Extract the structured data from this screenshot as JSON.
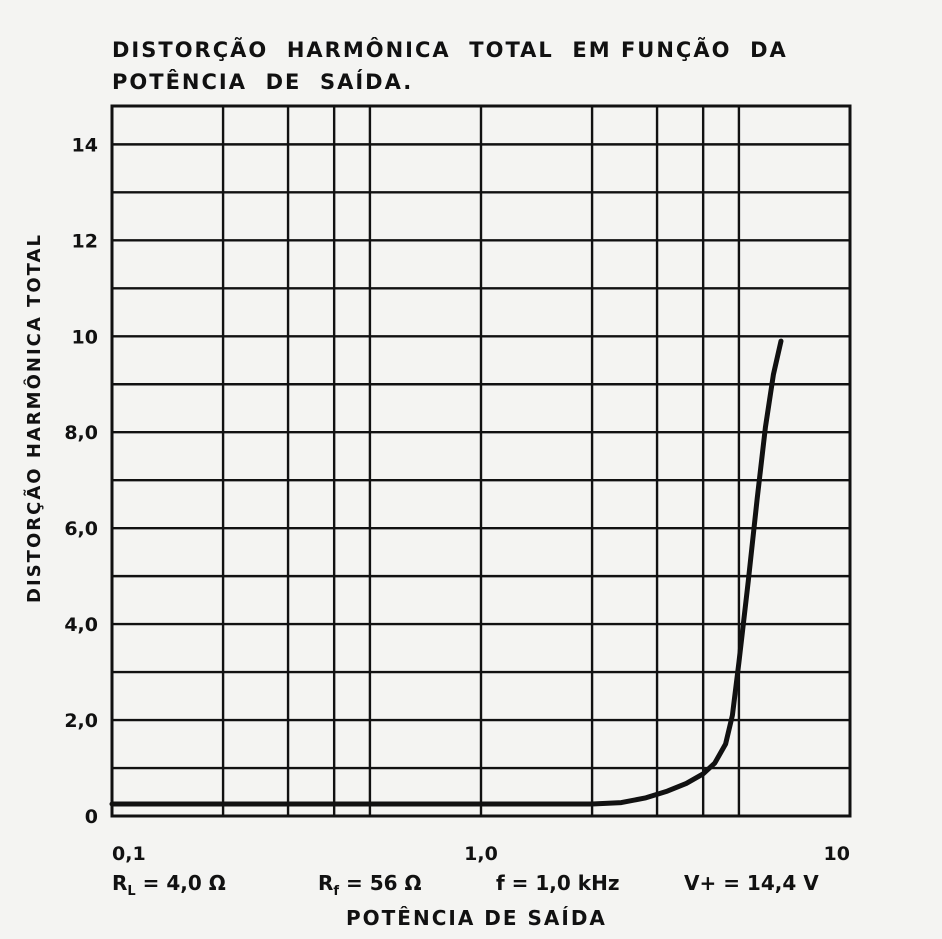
{
  "chart_data": {
    "type": "line",
    "title_lines": [
      "DISTORÇÃO  HARMÔNICA  TOTAL  EM FUNÇÃO  DA",
      "POTÊNCIA  DE  SAÍDA."
    ],
    "xlabel": "POTÊNCIA  DE  SAÍDA",
    "ylabel": "DISTORÇÃO  HARMÔNICA  TOTAL",
    "xscale": "log",
    "xlim": [
      0.1,
      10
    ],
    "ylim": [
      0,
      14.8
    ],
    "grid": true,
    "x_ticks": [
      {
        "value": 0.1,
        "label": "0,1"
      },
      {
        "value": 1.0,
        "label": "1,0"
      },
      {
        "value": 10,
        "label": "10"
      }
    ],
    "y_ticks": [
      {
        "value": 0,
        "label": "0"
      },
      {
        "value": 2,
        "label": "2,0"
      },
      {
        "value": 4,
        "label": "4,0"
      },
      {
        "value": 6,
        "label": "6,0"
      },
      {
        "value": 8,
        "label": "8,0"
      },
      {
        "value": 10,
        "label": "10"
      },
      {
        "value": 12,
        "label": "12"
      },
      {
        "value": 14,
        "label": "14"
      }
    ],
    "x_grid": [
      0.1,
      0.2,
      0.3,
      0.4,
      0.5,
      1.0,
      2.0,
      3.0,
      4.0,
      5.0,
      10
    ],
    "y_grid": [
      0,
      1,
      2,
      3,
      4,
      5,
      6,
      7,
      8,
      9,
      10,
      11,
      12,
      13,
      14,
      14.8
    ],
    "series": [
      {
        "color": "#111111",
        "x": [
          0.1,
          0.5,
          1.0,
          2.0,
          2.4,
          2.8,
          3.2,
          3.6,
          4.0,
          4.3,
          4.6,
          4.8,
          5.0,
          5.3,
          5.6,
          5.9,
          6.2,
          6.5
        ],
        "y": [
          0.25,
          0.25,
          0.25,
          0.25,
          0.28,
          0.38,
          0.52,
          0.68,
          0.88,
          1.1,
          1.5,
          2.1,
          3.2,
          4.9,
          6.6,
          8.1,
          9.2,
          9.9
        ]
      }
    ],
    "params": {
      "rl_label": "R",
      "rl_sub": "L",
      "rl_value": " = 4,0 Ω",
      "rf_label": "R",
      "rf_sub": "f",
      "rf_value": " = 56 Ω",
      "f": "f = 1,0 kHz",
      "v": "V+ =  14,4 V"
    }
  }
}
